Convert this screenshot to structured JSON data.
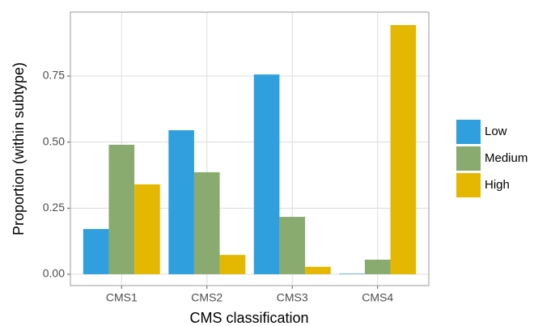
{
  "chart_data": {
    "type": "bar",
    "x_label": "CMS classification",
    "y_label": "Proportion (within subtype)",
    "categories": [
      "CMS1",
      "CMS2",
      "CMS3",
      "CMS4"
    ],
    "series": [
      {
        "name": "Low",
        "color": "#2fa0dd",
        "values": [
          0.171,
          0.545,
          0.756,
          0.002
        ]
      },
      {
        "name": "Medium",
        "color": "#8aab6f",
        "values": [
          0.49,
          0.386,
          0.217,
          0.055
        ]
      },
      {
        "name": "High",
        "color": "#e5b800",
        "values": [
          0.34,
          0.073,
          0.028,
          0.943
        ]
      }
    ],
    "ylim": [
      -0.043,
      0.992
    ],
    "yticks": [
      {
        "value": 0,
        "label": "0.00"
      },
      0.25,
      {
        "value": 0.5,
        "label": "0.50"
      },
      0.75
    ],
    "grid": true,
    "legend": "right"
  }
}
